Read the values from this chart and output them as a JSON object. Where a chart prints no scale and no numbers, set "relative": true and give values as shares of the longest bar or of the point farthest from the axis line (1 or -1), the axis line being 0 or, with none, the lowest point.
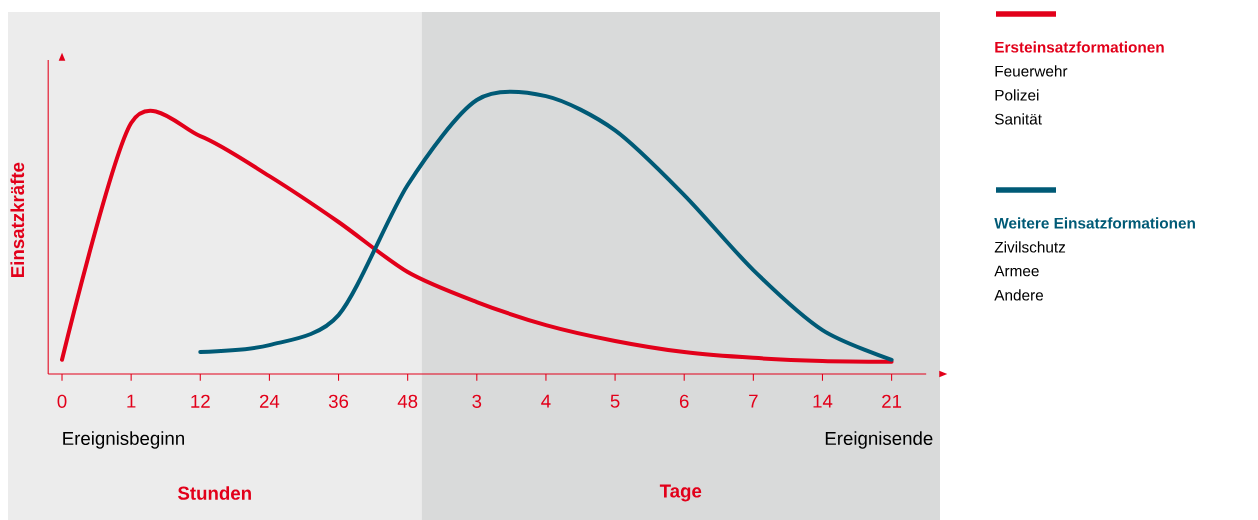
{
  "chart_data": {
    "type": "line",
    "relative": true,
    "ylabel": "Einsatzkräfte",
    "legend": "right",
    "categories": [
      "0",
      "1",
      "12",
      "24",
      "36",
      "48",
      "3",
      "4",
      "5",
      "6",
      "7",
      "14",
      "21"
    ],
    "bands": [
      {
        "axis": "x",
        "from": "0",
        "to": "48",
        "label": "Stunden",
        "color": "#ececec"
      },
      {
        "axis": "x",
        "from": "48",
        "to": "21",
        "label": "Tage",
        "color": "#d9dada"
      }
    ],
    "annotations": [
      "Ereignisbeginn",
      "Ereignisende",
      "Feuerwehr",
      "Polizei",
      "Sanität",
      "Zivilschutz",
      "Armee",
      "Andere"
    ],
    "series": [
      {
        "name": "Ersteinsatzformationen",
        "color": "#e2001a",
        "values": [
          0.051,
          0.903,
          0.856,
          0.712,
          0.547,
          0.367,
          0.259,
          0.176,
          0.119,
          0.079,
          0.058,
          0.047,
          0.044
        ]
      },
      {
        "name": "Weitere Einsatzformationen",
        "color": "#005a76",
        "values": [
          null,
          null,
          0.079,
          0.104,
          0.212,
          0.68,
          0.986,
          1.0,
          0.877,
          0.644,
          0.374,
          0.158,
          0.051
        ]
      }
    ]
  }
}
